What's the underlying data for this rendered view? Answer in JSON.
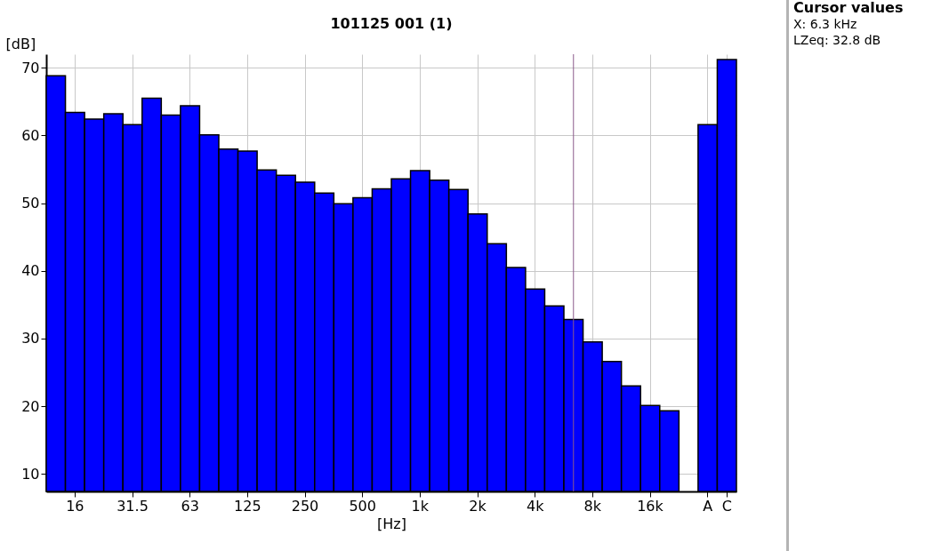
{
  "chart_data": {
    "type": "bar",
    "title": "101125 001 (1)",
    "xlabel": "[Hz]",
    "ylabel": "[dB]",
    "categories": [
      null,
      "16",
      null,
      null,
      "31.5",
      null,
      null,
      "63",
      null,
      null,
      "125",
      null,
      null,
      "250",
      null,
      null,
      "500",
      null,
      null,
      "1k",
      null,
      null,
      "2k",
      null,
      null,
      "4k",
      null,
      null,
      "8k",
      null,
      null,
      "16k",
      null,
      null,
      "A",
      "C"
    ],
    "values": [
      68.8,
      63.4,
      62.4,
      63.2,
      61.6,
      65.5,
      63.0,
      64.4,
      60.1,
      58.0,
      57.7,
      54.9,
      54.1,
      53.1,
      51.5,
      49.9,
      50.8,
      52.1,
      53.6,
      54.8,
      53.4,
      52.0,
      48.4,
      44.0,
      40.5,
      37.3,
      34.8,
      32.8,
      29.5,
      26.6,
      23.0,
      20.1,
      19.3,
      null,
      61.6,
      71.2
    ],
    "color": "#0000ff",
    "ylim": [
      7.4,
      72
    ],
    "yticks": [
      10,
      20,
      30,
      40,
      50,
      60,
      70
    ],
    "grid": true,
    "annotations": [
      "Cursor values",
      "X: 6.3 kHz",
      "LZeq: 32.8 dB"
    ]
  }
}
